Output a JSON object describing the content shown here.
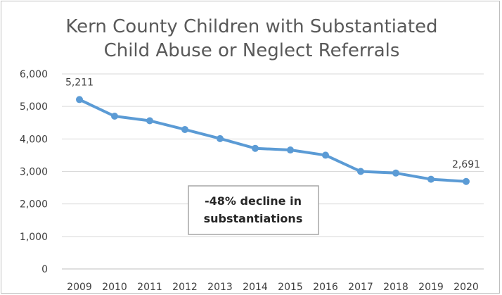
{
  "chart_data": {
    "type": "line",
    "title_lines": [
      "Kern County Children with Substantiated",
      "Child Abuse or Neglect Referrals"
    ],
    "categories": [
      "2009",
      "2010",
      "2011",
      "2012",
      "2013",
      "2014",
      "2015",
      "2016",
      "2017",
      "2018",
      "2019",
      "2020"
    ],
    "series": [
      {
        "values": [
          5211,
          4700,
          4560,
          4290,
          4010,
          3710,
          3660,
          3500,
          3000,
          2950,
          2760,
          2691
        ]
      }
    ],
    "ylim": [
      0,
      6000
    ],
    "yticks": [
      0,
      1000,
      2000,
      3000,
      4000,
      5000,
      6000
    ],
    "ytick_labels": [
      "0",
      "1,000",
      "2,000",
      "3,000",
      "4,000",
      "5,000",
      "6,000"
    ],
    "data_labels": [
      {
        "index": 0,
        "text": "5,211"
      },
      {
        "index": 11,
        "text": "2,691"
      }
    ],
    "annotation": {
      "lines": [
        "-48% decline in",
        "substantiations"
      ]
    },
    "grid": true,
    "legend": "none",
    "colors": {
      "line": "#5b9bd5",
      "grid": "#d9d9d9",
      "text": "#595959"
    }
  }
}
